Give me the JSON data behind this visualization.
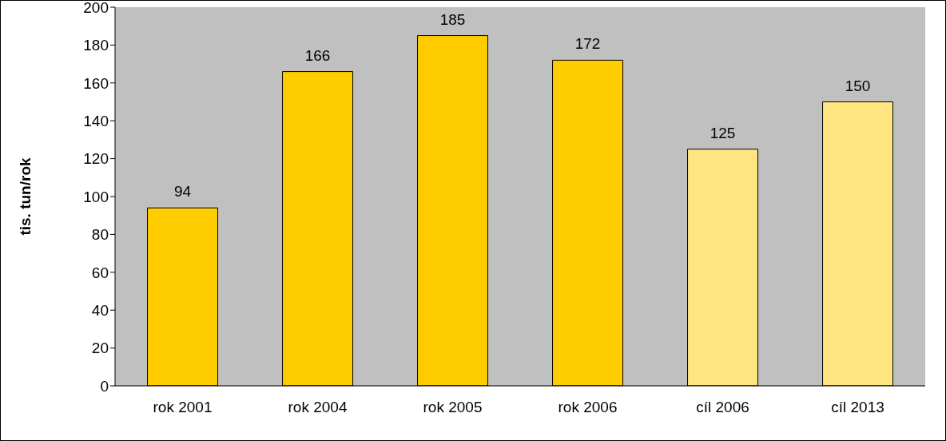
{
  "chart_data": {
    "type": "bar",
    "ylabel": "tis. tun/rok",
    "categories": [
      "rok 2001",
      "rok 2004",
      "rok 2005",
      "rok 2006",
      "cíl 2006",
      "cíl 2013"
    ],
    "values": [
      94,
      166,
      185,
      172,
      125,
      150
    ],
    "colors": [
      "#ffcc00",
      "#ffcc00",
      "#ffcc00",
      "#ffcc00",
      "#ffe680",
      "#ffe680"
    ],
    "ylim": [
      0,
      200
    ],
    "yticks": [
      0,
      20,
      40,
      60,
      80,
      100,
      120,
      140,
      160,
      180,
      200
    ],
    "data_labels": true
  }
}
